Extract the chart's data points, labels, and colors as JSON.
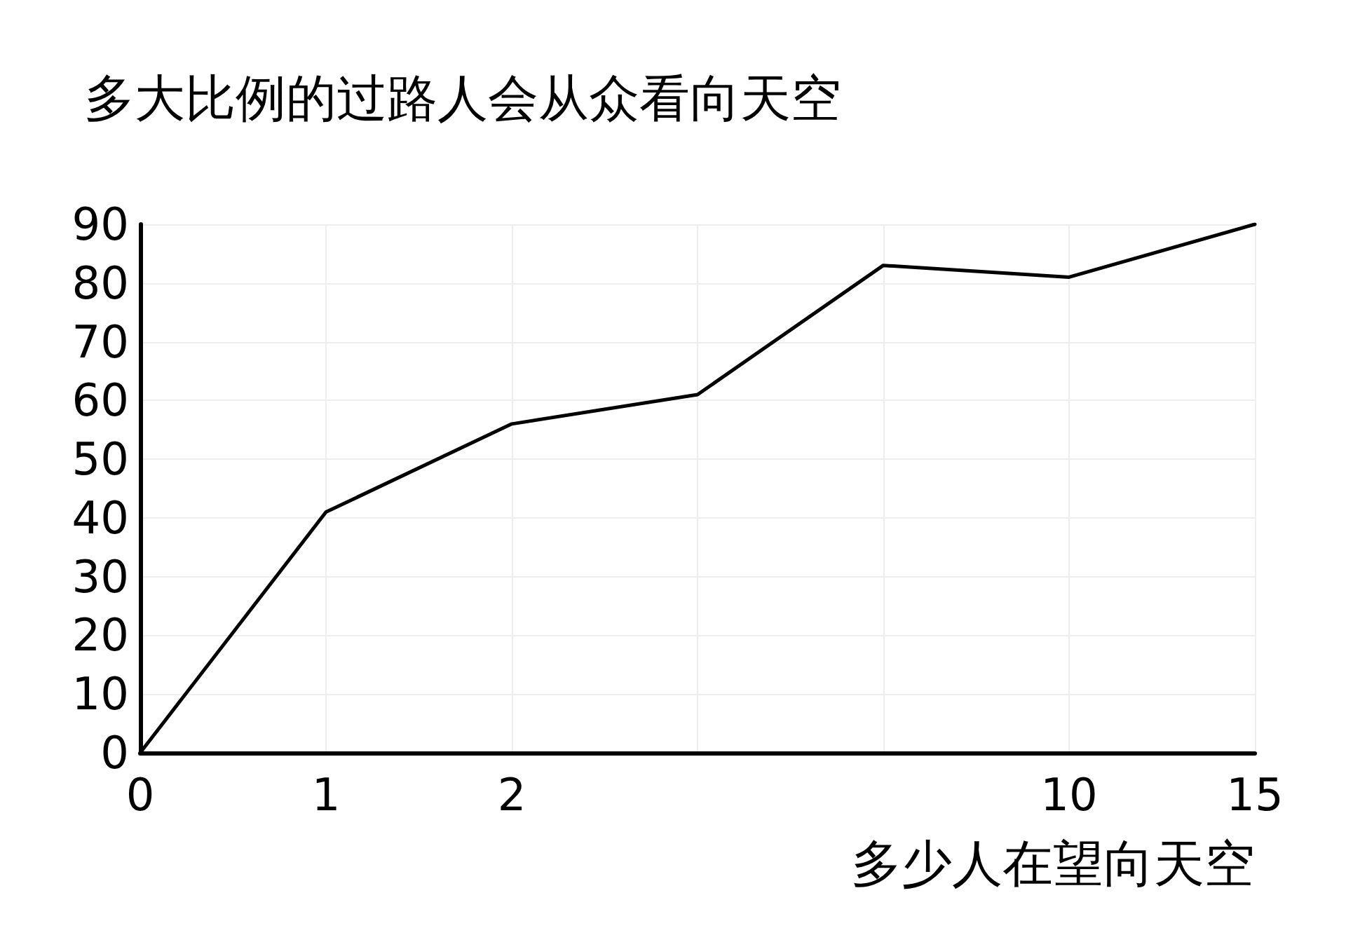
{
  "chart_data": {
    "type": "line",
    "title": "多大比例的过路人会从众看向天空",
    "xlabel": "多少人在望向天空",
    "categories": [
      "0",
      "1",
      "2",
      null,
      null,
      "10",
      "15"
    ],
    "series": [
      {
        "color": "#000000",
        "values": [
          0,
          41,
          56,
          61,
          83,
          81,
          90
        ]
      }
    ],
    "ylim": [
      0,
      90
    ],
    "yticks": [
      0,
      10,
      20,
      30,
      40,
      50,
      60,
      70,
      80,
      90
    ],
    "grid": true,
    "marker": "none",
    "line_style": "solid"
  }
}
